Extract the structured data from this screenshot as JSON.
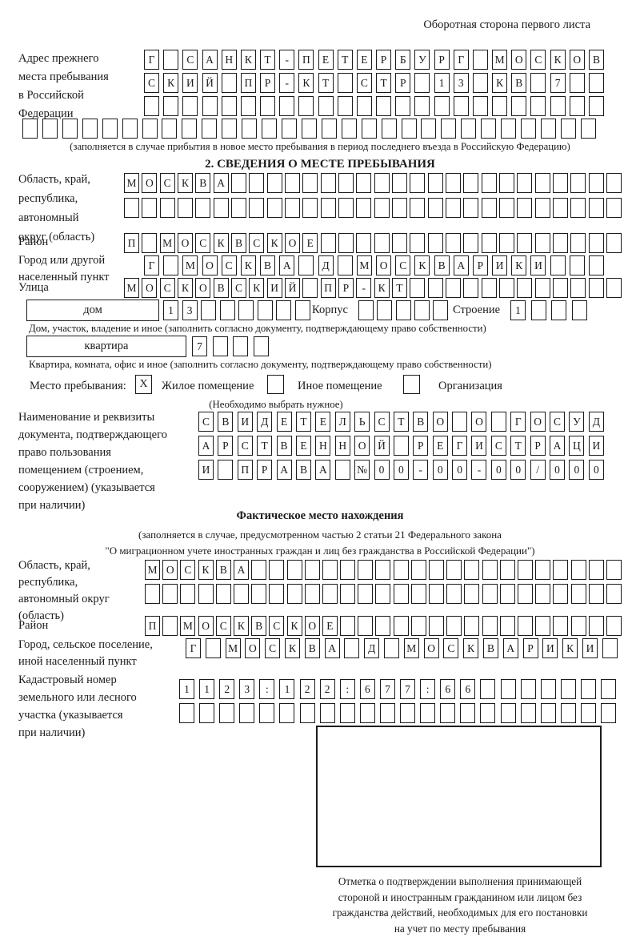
{
  "header": {
    "note": "Оборотная сторона первого листа"
  },
  "prev_address": {
    "label_lines": [
      "Адрес прежнего",
      "места пребывания",
      "в Российской",
      "Федерации"
    ],
    "row1": "Г САНКТ-ПЕТЕРБУРГ МОСКОВ",
    "row2": "СКИЙ ПР-КТ СТР 13 КВ 7  ",
    "row3": "                        ",
    "row4": "                             ",
    "caption": "(заполняется в случае прибытия в новое место пребывания в период последнего въезда в Российскую Федерацию)"
  },
  "section2": {
    "title": "2. СВЕДЕНИЯ О МЕСТЕ ПРЕБЫВАНИЯ",
    "region": {
      "label_lines": [
        "Область, край,",
        "республика,",
        "автономный",
        "округ (область)"
      ],
      "row1": "МОСКВА                      ",
      "row2": "                            "
    },
    "district": {
      "label": "Район",
      "row": "П МОСКВСКОЕ                 "
    },
    "city": {
      "label_lines": [
        "Город или другой",
        "населенный пункт"
      ],
      "row": "Г МОСКВА Д МОСКВАРИКИ   "
    },
    "street": {
      "label": "Улица",
      "row": "МОСКОВСКИЙ ПР-КТ            "
    },
    "house": {
      "box_label": "дом",
      "cells": "13      ",
      "korpus_label": "Корпус",
      "korpus_cells": "     ",
      "stroenie_label": "Строение",
      "stroenie_cells": "1   ",
      "caption": "Дом, участок, владение и иное (заполнить согласно документу, подтверждающему право собственности)"
    },
    "apartment": {
      "box_label": "квартира",
      "cells": "7   ",
      "caption": "Квартира, комната, офис и иное (заполнить согласно документу, подтверждающему право собственности)"
    },
    "stay_type": {
      "label": "Место пребывания:",
      "options": [
        {
          "label": "Жилое помещение",
          "checked": "X"
        },
        {
          "label": "Иное помещение",
          "checked": ""
        },
        {
          "label": "Организация",
          "checked": ""
        }
      ],
      "hint": "(Необходимо выбрать нужное)"
    },
    "document": {
      "label_lines": [
        "Наименование и реквизиты",
        "документа, подтверждающего",
        "право пользования",
        "помещением (строением,",
        "сооружением) (указывается",
        "при наличии)"
      ],
      "row1": "СВИДЕТЕЛЬСТВО О ГОСУД",
      "row2": "АРСТВЕННОЙ РЕГИСТРАЦИ",
      "row3": "И ПРАВА №00-00-00/000"
    }
  },
  "actual_location": {
    "title": "Фактическое место нахождения",
    "note_line1": "(заполняется в случае, предусмотренном частью 2 статьи 21 Федерального закона",
    "note_line2": "\"О миграционном учете иностранных граждан и лиц без гражданства в Российской Федерации\")",
    "region": {
      "label_lines": [
        "Область, край,",
        "республика,",
        "автономный округ",
        "(область)"
      ],
      "row1": "МОСКВА                     ",
      "row2": "                           "
    },
    "district": {
      "label": "Район",
      "row": "П МОСКВСКОЕ                "
    },
    "city": {
      "label_lines": [
        "Город, сельское поселение,",
        "иной населенный пункт"
      ],
      "row": "Г МОСКВА Д МОСКВАРИКИ "
    },
    "cadastral": {
      "label_lines": [
        "Кадастровый номер",
        "земельного или лесного",
        "участка (указывается",
        "при наличии)"
      ],
      "row1": "1123:122:677:66       ",
      "row2": "                      "
    },
    "stamp_caption_lines": [
      "Отметка о подтверждении выполнения принимающей",
      "стороной и иностранным гражданином или лицом без",
      "гражданства действий, необходимых для его постановки",
      "на учет по месту пребывания"
    ]
  }
}
